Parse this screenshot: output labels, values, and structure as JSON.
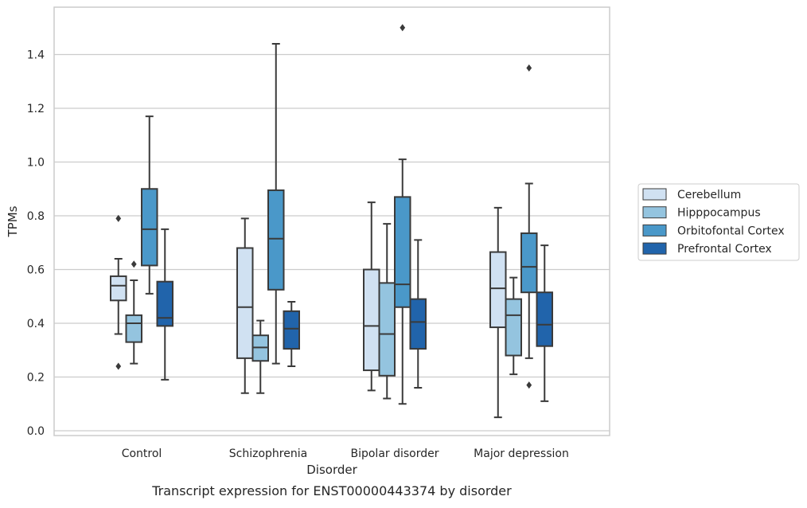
{
  "chart_data": {
    "type": "box",
    "title": "",
    "caption": "Transcript expression for ENST00000443374 by disorder",
    "xlabel": "Disorder",
    "ylabel": "TPMs",
    "ylim": [
      -0.02,
      1.58
    ],
    "yticks": [
      0.0,
      0.2,
      0.4,
      0.6,
      0.8,
      1.0,
      1.2,
      1.4
    ],
    "ytick_labels": [
      "0.0",
      "0.2",
      "0.4",
      "0.6",
      "0.8",
      "1.0",
      "1.2",
      "1.4"
    ],
    "categories": [
      "Control",
      "Schizophrenia",
      "Bipolar disorder",
      "Major depression"
    ],
    "grid": "horizontal",
    "legend_position": "right",
    "series": [
      {
        "name": "Cerebellum",
        "color": "#d0e1f2",
        "boxes": [
          {
            "q1": 0.485,
            "median": 0.54,
            "q3": 0.575,
            "whisker_low": 0.36,
            "whisker_high": 0.64,
            "outliers": [
              0.79,
              0.24
            ]
          },
          {
            "q1": 0.27,
            "median": 0.46,
            "q3": 0.68,
            "whisker_low": 0.14,
            "whisker_high": 0.79,
            "outliers": []
          },
          {
            "q1": 0.225,
            "median": 0.39,
            "q3": 0.6,
            "whisker_low": 0.15,
            "whisker_high": 0.85,
            "outliers": []
          },
          {
            "q1": 0.385,
            "median": 0.53,
            "q3": 0.665,
            "whisker_low": 0.05,
            "whisker_high": 0.83,
            "outliers": []
          }
        ]
      },
      {
        "name": "Hipppocampus",
        "color": "#94c4df",
        "boxes": [
          {
            "q1": 0.33,
            "median": 0.4,
            "q3": 0.43,
            "whisker_low": 0.25,
            "whisker_high": 0.56,
            "outliers": [
              0.62
            ]
          },
          {
            "q1": 0.26,
            "median": 0.31,
            "q3": 0.355,
            "whisker_low": 0.14,
            "whisker_high": 0.41,
            "outliers": []
          },
          {
            "q1": 0.205,
            "median": 0.36,
            "q3": 0.55,
            "whisker_low": 0.12,
            "whisker_high": 0.77,
            "outliers": []
          },
          {
            "q1": 0.28,
            "median": 0.43,
            "q3": 0.49,
            "whisker_low": 0.21,
            "whisker_high": 0.57,
            "outliers": []
          }
        ]
      },
      {
        "name": "Orbitofontal Cortex",
        "color": "#4a98c9",
        "boxes": [
          {
            "q1": 0.615,
            "median": 0.75,
            "q3": 0.9,
            "whisker_low": 0.51,
            "whisker_high": 1.17,
            "outliers": []
          },
          {
            "q1": 0.525,
            "median": 0.715,
            "q3": 0.895,
            "whisker_low": 0.25,
            "whisker_high": 1.44,
            "outliers": []
          },
          {
            "q1": 0.46,
            "median": 0.545,
            "q3": 0.87,
            "whisker_low": 0.1,
            "whisker_high": 1.01,
            "outliers": [
              1.5
            ]
          },
          {
            "q1": 0.515,
            "median": 0.61,
            "q3": 0.735,
            "whisker_low": 0.27,
            "whisker_high": 0.92,
            "outliers": [
              1.35,
              0.17
            ]
          }
        ]
      },
      {
        "name": "Prefrontal Cortex",
        "color": "#2164ab",
        "boxes": [
          {
            "q1": 0.39,
            "median": 0.42,
            "q3": 0.555,
            "whisker_low": 0.19,
            "whisker_high": 0.75,
            "outliers": []
          },
          {
            "q1": 0.305,
            "median": 0.38,
            "q3": 0.445,
            "whisker_low": 0.24,
            "whisker_high": 0.48,
            "outliers": []
          },
          {
            "q1": 0.305,
            "median": 0.405,
            "q3": 0.49,
            "whisker_low": 0.16,
            "whisker_high": 0.71,
            "outliers": []
          },
          {
            "q1": 0.315,
            "median": 0.395,
            "q3": 0.515,
            "whisker_low": 0.11,
            "whisker_high": 0.69,
            "outliers": []
          }
        ]
      }
    ]
  },
  "colors": {
    "axes_frame": "#cccccc",
    "grid": "#cccccc",
    "box_edge": "#3a3a3a"
  }
}
